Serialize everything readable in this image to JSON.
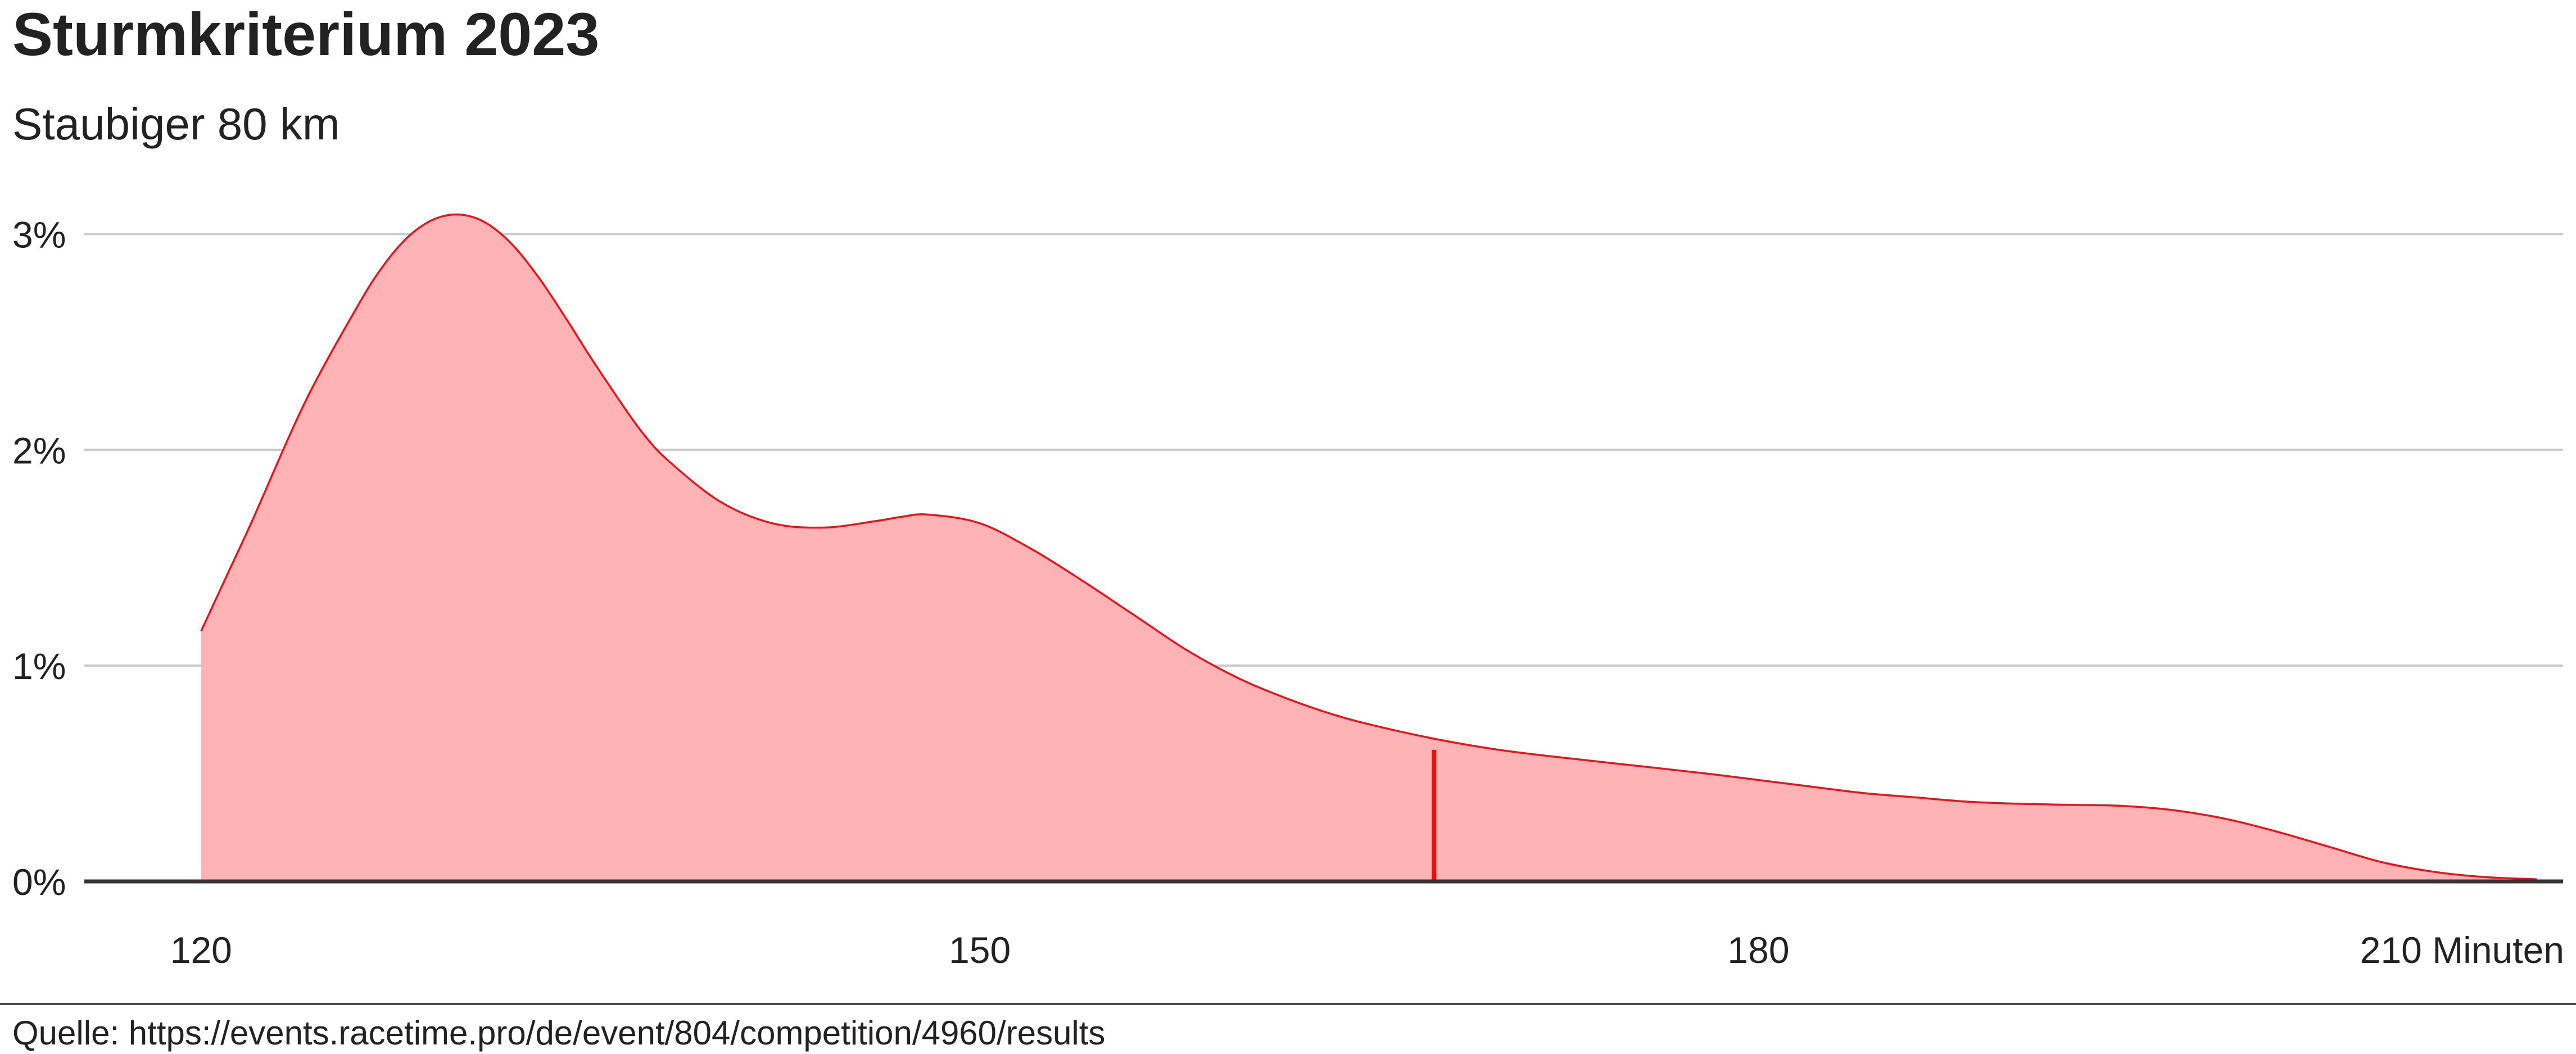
{
  "chart_data": {
    "type": "area",
    "title": "Sturmkriterium 2023",
    "subtitle": "Staubiger 80 km",
    "source": "Quelle: https://events.racetime.pro/de/event/804/competition/4960/results",
    "x_unit": "Minuten",
    "xlim": [
      115.5,
      211
    ],
    "ylim": [
      0,
      3.1
    ],
    "x_ticks": [
      120,
      150,
      180,
      210
    ],
    "x_tick_labels": [
      "120",
      "150",
      "180",
      "210 Minuten"
    ],
    "y_ticks": [
      0,
      1,
      2,
      3
    ],
    "y_tick_labels": [
      "0%",
      "1%",
      "2%",
      "3%"
    ],
    "grid": true,
    "series": [
      {
        "x": [
          120,
          121,
          122,
          124,
          126,
          127,
          128,
          129,
          130,
          131,
          132,
          133,
          134,
          135,
          136,
          137,
          138,
          140,
          142,
          144,
          146,
          147,
          148,
          150,
          152,
          154,
          156,
          158,
          160,
          162,
          164,
          166,
          168,
          170,
          172,
          175,
          178,
          180,
          182,
          184,
          186,
          188,
          190,
          192,
          194,
          196,
          198,
          200,
          202,
          204,
          206,
          208,
          210
        ],
        "y": [
          1.16,
          1.42,
          1.68,
          2.22,
          2.66,
          2.85,
          2.99,
          3.07,
          3.09,
          3.05,
          2.95,
          2.8,
          2.62,
          2.43,
          2.25,
          2.08,
          1.95,
          1.76,
          1.66,
          1.64,
          1.67,
          1.69,
          1.7,
          1.66,
          1.54,
          1.39,
          1.23,
          1.07,
          0.94,
          0.84,
          0.76,
          0.7,
          0.65,
          0.61,
          0.58,
          0.54,
          0.5,
          0.47,
          0.44,
          0.41,
          0.39,
          0.37,
          0.36,
          0.355,
          0.35,
          0.33,
          0.29,
          0.23,
          0.16,
          0.09,
          0.045,
          0.02,
          0.01
        ]
      }
    ],
    "annotations": [
      {
        "type": "vline",
        "x": 167.5,
        "y": 0.61
      }
    ],
    "colors": {
      "fill": "#ffb3b5",
      "line": "#e8141c",
      "marker": "#f20d10",
      "grid": "#cbcbcb",
      "axis": "#333333",
      "text": "#222222"
    }
  }
}
